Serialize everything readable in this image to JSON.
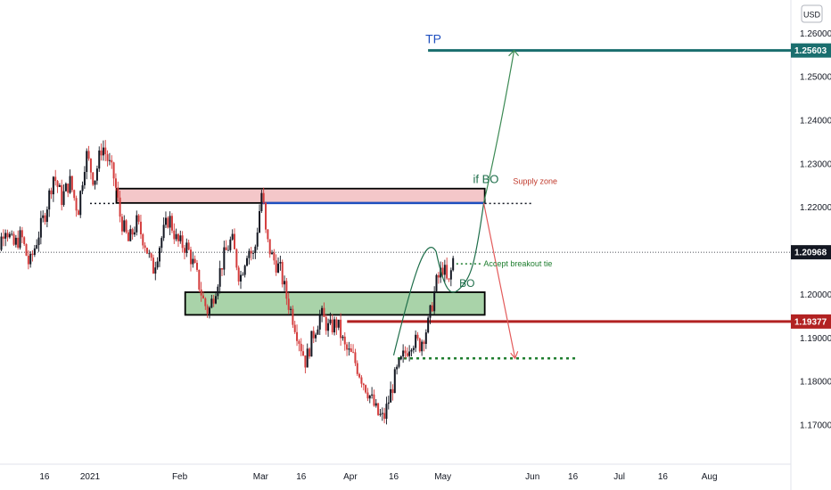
{
  "currency_button": "USD",
  "chart_data": {
    "type": "candlestick",
    "instrument_currency": "USD",
    "x_axis_labels": [
      "16",
      "2021",
      "Feb",
      "Mar",
      "16",
      "Apr",
      "16",
      "May",
      "Jun",
      "16",
      "Jul",
      "16",
      "Aug"
    ],
    "x_axis_weeks": [
      -2.25,
      0,
      4.43,
      8.43,
      10.43,
      12.86,
      15.0,
      17.43,
      21.86,
      23.86,
      26.15,
      28.3,
      30.6
    ],
    "y_axis_ticks": [
      "1.26000",
      "1.25000",
      "1.24000",
      "1.23000",
      "1.22000",
      "1.20000",
      "1.19000",
      "1.18000",
      "1.17000"
    ],
    "y_axis_values": [
      1.26,
      1.25,
      1.24,
      1.23,
      1.22,
      1.2,
      1.19,
      1.18,
      1.17
    ],
    "ylim": [
      1.1651,
      1.2666
    ],
    "last_price": {
      "label": "1.20968",
      "value": 1.20968,
      "color": "#131722"
    },
    "price_path": [
      [
        -5.0,
        1.214
      ],
      [
        -4.6,
        1.2095
      ],
      [
        -4.2,
        1.216
      ],
      [
        -3.8,
        1.211
      ],
      [
        -3.4,
        1.2135
      ],
      [
        -3.0,
        1.2065
      ],
      [
        -2.6,
        1.213
      ],
      [
        -2.2,
        1.219
      ],
      [
        -1.8,
        1.2275
      ],
      [
        -1.4,
        1.222
      ],
      [
        -1.0,
        1.226
      ],
      [
        -0.6,
        1.219
      ],
      [
        -0.2,
        1.2325
      ],
      [
        0.2,
        1.226
      ],
      [
        0.6,
        1.2345
      ],
      [
        0.9,
        1.2305
      ],
      [
        1.2,
        1.2265
      ],
      [
        1.5,
        1.2175
      ],
      [
        1.9,
        1.212
      ],
      [
        2.3,
        1.2165
      ],
      [
        2.7,
        1.212
      ],
      [
        3.1,
        1.2055
      ],
      [
        3.5,
        1.2125
      ],
      [
        3.9,
        1.2178
      ],
      [
        4.3,
        1.212
      ],
      [
        4.8,
        1.2108
      ],
      [
        5.2,
        1.2055
      ],
      [
        5.6,
        1.1985
      ],
      [
        5.85,
        1.1958
      ],
      [
        6.2,
        1.2015
      ],
      [
        6.6,
        1.2085
      ],
      [
        7.0,
        1.2128
      ],
      [
        7.4,
        1.2035
      ],
      [
        7.8,
        1.2108
      ],
      [
        8.1,
        1.2085
      ],
      [
        8.3,
        1.2165
      ],
      [
        8.5,
        1.2243
      ],
      [
        8.7,
        1.2128
      ],
      [
        9.0,
        1.2085
      ],
      [
        9.4,
        1.2055
      ],
      [
        9.7,
        1.1995
      ],
      [
        10.0,
        1.195
      ],
      [
        10.4,
        1.1885
      ],
      [
        10.65,
        1.1845
      ],
      [
        11.0,
        1.1905
      ],
      [
        11.4,
        1.1955
      ],
      [
        11.8,
        1.192
      ],
      [
        12.2,
        1.1935
      ],
      [
        12.6,
        1.1875
      ],
      [
        13.0,
        1.1855
      ],
      [
        13.4,
        1.181
      ],
      [
        13.8,
        1.177
      ],
      [
        14.2,
        1.1725
      ],
      [
        14.5,
        1.1713
      ],
      [
        14.8,
        1.1765
      ],
      [
        15.1,
        1.1815
      ],
      [
        15.5,
        1.186
      ],
      [
        15.9,
        1.1895
      ],
      [
        16.3,
        1.1885
      ],
      [
        16.7,
        1.193
      ],
      [
        17.1,
        1.2025
      ],
      [
        17.45,
        1.2065
      ],
      [
        17.7,
        1.2015
      ],
      [
        18.0,
        1.2098
      ]
    ],
    "annotations": {
      "tp_label": "TP",
      "tp_level": {
        "label": "1.25603",
        "value": 1.25603,
        "color": "#1a6e6e"
      },
      "support_level": {
        "label": "1.19377",
        "value": 1.19377,
        "color": "#b22222"
      },
      "supply_zone_label": "Supply zone",
      "supply_zone": {
        "from_week": 1.3,
        "to_week": 19.5,
        "low": 1.221,
        "high": 1.2243,
        "fill": "#f4c7c9"
      },
      "demand_zone": {
        "from_week": 4.7,
        "to_week": 19.5,
        "low": 1.1953,
        "high": 1.2005,
        "fill": "#a9d3a9"
      },
      "accept_breakout_label": "Accept breakout tie",
      "if_bo_label": "if BO",
      "bo_label": "BO",
      "lower_target_value": 1.1853
    }
  }
}
